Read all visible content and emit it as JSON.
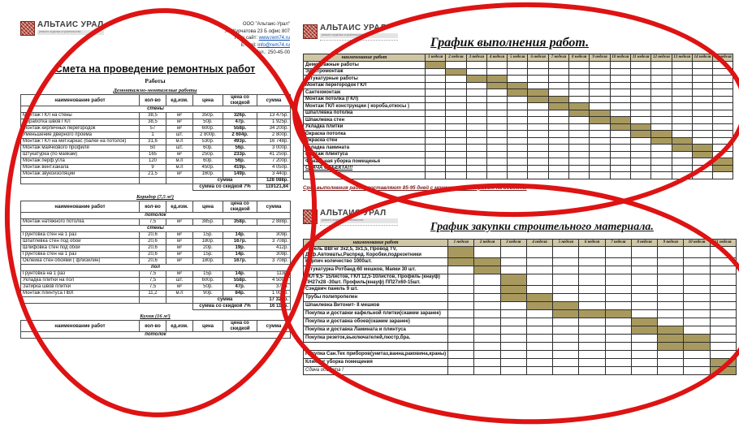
{
  "brand": {
    "name": "АЛЬТАИС УРАЛ",
    "tagline": "ремонт отделка строительство"
  },
  "estimate": {
    "contact": {
      "company": "ООО \"Альтаис-Урал\"",
      "address": "Ул. Курчатова 23 Б офис 807",
      "site_prefix": "Наш сайт: ",
      "site": "www.rem74.ru",
      "email_prefix": "E-mail: ",
      "email": "info@rem74.ru",
      "phone": "Тел.: 250-45-00"
    },
    "title": "Смета на проведение ремонтных работ",
    "subtitle": "Работы",
    "columns": [
      "наименование работ",
      "кол-во",
      "ед.изм.",
      "цена",
      "цена со скидкой",
      "сумма"
    ],
    "sections": [
      {
        "heading": "Демонтажно-монтажные работы",
        "groups": [
          {
            "label": "стены",
            "rows": [
              [
                "Монтаж ГКЛ на стены",
                "38,5",
                "м²",
                "350р.",
                "326р.",
                "13 475р."
              ],
              [
                "Обработка швов ГКЛ",
                "38,5",
                "м²",
                "50р.",
                "47р.",
                "1 925р."
              ],
              [
                "Монтаж кирпичных перегородок",
                "57",
                "м²",
                "600р.",
                "558р.",
                "34 200р."
              ],
              [
                "Уменьшение дверного проема",
                "1",
                "шт.",
                "2 800р.",
                "2 604р.",
                "2 800р."
              ],
              [
                "Монтаж ГКЛ на мет.каркас (балки на потолок)",
                "31,6",
                "м.п",
                "530р.",
                "493р.",
                "16 748р."
              ],
              [
                "Монтаж маячкового профиля",
                "50",
                "шт.",
                "60р.",
                "56р.",
                "3 000р."
              ],
              [
                "Штукатурка (по маякам)",
                "165",
                "м²",
                "250р.",
                "233р.",
                "41 250р."
              ],
              [
                "Монтаж перф.угла",
                "120",
                "м.п",
                "60р.",
                "56р.",
                "7 200р."
              ],
              [
                "Монтаж вент.канала",
                "9",
                "м.п",
                "450р.",
                "419р.",
                "4 050р."
              ],
              [
                "Монтаж звукоизоляции",
                "21,5",
                "м²",
                "160р.",
                "149р.",
                "3 440р."
              ]
            ]
          }
        ],
        "totals": [
          {
            "label": "сумма",
            "value": "128 088р.",
            "full_row": true
          },
          {
            "label": "сумма со скидкой 7%",
            "value": "119121,84",
            "full_row": false
          }
        ]
      },
      {
        "heading": "Коридор (7,5 м²)",
        "groups": [
          {
            "label": "потолок",
            "rows": [
              [
                "Монтаж натяжного потолка",
                "7,5",
                "м²",
                "385р.",
                "358р.",
                "2 888р."
              ]
            ]
          },
          {
            "label": "стены",
            "rows": [
              [
                "Грунтовка стен на 1 раз",
                "20,6",
                "м²",
                "15р.",
                "14р.",
                "309р."
              ],
              [
                "Шпатлевка стен под обои",
                "20,6",
                "м²",
                "180р.",
                "167р.",
                "3 708р."
              ],
              [
                "Шлифовка стен под обои",
                "20,6",
                "м²",
                "20р.",
                "19р.",
                "412р."
              ],
              [
                "Грунтовка стен на 1 раз",
                "20,6",
                "м²",
                "15р.",
                "14р.",
                "309р."
              ],
              [
                "Оклейка стен обоями ( флизилин)",
                "20,6",
                "м²",
                "180р.",
                "167р.",
                "3 708р."
              ]
            ]
          },
          {
            "label": "пол",
            "rows": [
              [
                "Грунтовка  на 1 раз",
                "7,5",
                "м²",
                "15р.",
                "14р.",
                "113р."
              ],
              [
                "Укладка плитки на пол",
                "7,5",
                "шт.",
                "600р.",
                "558р.",
                "4 500р."
              ],
              [
                "Затирка швов плитки",
                "7,5",
                "м²",
                "50р.",
                "47р.",
                "375р."
              ],
              [
                "Монтаж плинтуса ПВХ",
                "11,2",
                "м.п",
                "90р.",
                "84р.",
                "1 008р."
              ]
            ]
          }
        ],
        "totals": [
          {
            "label": "сумма",
            "value": "17 329р.",
            "full_row": true
          },
          {
            "label": "сумма со скидкой 7%",
            "value": "16 116р.",
            "full_row": false
          }
        ]
      },
      {
        "heading": "Кухня (16 м²)",
        "groups": [
          {
            "label": "потолок",
            "rows": []
          }
        ],
        "totals": []
      }
    ]
  },
  "work_schedule": {
    "title": "График выполнения работ.",
    "name_column": "наименование работ",
    "weeks": [
      "1 неделя",
      "2 неделя",
      "3 неделя",
      "4 неделя",
      "5 неделя",
      "6 неделя",
      "7 неделя",
      "8 неделя",
      "9 неделя",
      "10 неделя",
      "11 неделя",
      "12 неделя",
      "13 неделя",
      "14 неделя",
      "15 неделя"
    ],
    "rows": [
      {
        "label": "Демонтажные работы",
        "weeks": [
          1
        ]
      },
      {
        "label": "Электромонтаж",
        "weeks": [
          2
        ]
      },
      {
        "label": "Штукатурные работы",
        "weeks": [
          3,
          4
        ]
      },
      {
        "label": "Монтаж  перегородок ГКЛ",
        "weeks": [
          4,
          5
        ]
      },
      {
        "label": "Сантехмонтаж",
        "weeks": [
          5,
          6
        ]
      },
      {
        "label": "Монтаж потолка (ГКЛ)",
        "weeks": [
          6,
          7
        ]
      },
      {
        "label": "Монтаж ГКЛ конструкции ( короба,откосы )",
        "weeks": [
          7,
          8
        ]
      },
      {
        "label": "Шпатлёвка  потолка",
        "weeks": [
          8,
          9
        ]
      },
      {
        "label": "Шпаклевка стен",
        "weeks": [
          9,
          10
        ]
      },
      {
        "label": "Укладка плитки",
        "weeks": [
          10,
          11
        ]
      },
      {
        "label": "Окраска потолка",
        "weeks": [
          11,
          12
        ]
      },
      {
        "label": "Окраска стен",
        "weeks": [
          12,
          13
        ]
      },
      {
        "label": "Укладка ламината",
        "weeks": [
          13,
          14
        ]
      },
      {
        "label": "Монтаж плинтуса",
        "weeks": [
          14
        ]
      },
      {
        "label": "Финальная уборка помещенья",
        "weeks": [
          15
        ]
      },
      {
        "label": "СДАЧА ОБЪЕКТА!!!",
        "weeks": [
          15
        ],
        "emphasis": true
      },
      {
        "label": "",
        "weeks": []
      }
    ],
    "footnote": "Срок выполнения работ составляют 85-95 дней с момента начала работ на объекте."
  },
  "purchase_schedule": {
    "title": "График закупки строительного материала.",
    "name_column": "наименование работ",
    "weeks": [
      "1 неделя",
      "2 неделя",
      "3 неделя",
      "4 неделя",
      "5 неделя",
      "6 неделя",
      "7 неделя",
      "8 неделя",
      "9 неделя",
      "10 неделя",
      "11 неделя"
    ],
    "rows": [
      {
        "label": "Кабель ВВГнг 3х2,5, 3х1,5, Провод TV,",
        "label2": "Диф.Автоматы,Распред. Коробки,подрезетники",
        "weeks": [
          1
        ]
      },
      {
        "label": "Кирпич количество 1000шт.",
        "weeks": [
          1,
          2
        ]
      },
      {
        "label": "Штукатурка Ротбанд-60 мешков, Маяки 30 шт.",
        "weeks": [
          2
        ]
      },
      {
        "label": "ГКЛ 9,5- 15листов, ГКЛ 12,5-10листов, Профиль (кнауф)",
        "label2": "ПН27х28 -30шт. Профиль(кнауф) ПП27х60-15шт.",
        "weeks": [
          3
        ]
      },
      {
        "label": "Сэндвич панель 9 шт.",
        "weeks": [
          3
        ]
      },
      {
        "label": "Трубы полипропелен",
        "weeks": [
          3,
          4
        ]
      },
      {
        "label": "Шпаклевка Витонит- 8 мешков",
        "weeks": [
          4,
          5
        ]
      },
      {
        "label": "Покупка и доставки кафельной плитки(скажем заранее)",
        "weeks": [
          5,
          6,
          7
        ]
      },
      {
        "label": "Покупка и доставка обоев(скажем заранее)",
        "weeks": [
          8
        ]
      },
      {
        "label": "Покупка и доставка Ламината и плинтуса",
        "weeks": [
          8,
          9
        ]
      },
      {
        "label": "Покупка резеток,выключателей,люстр,бра.",
        "weeks": [
          9,
          10
        ]
      },
      {
        "label": "",
        "weeks": [
          9,
          10
        ]
      },
      {
        "label": "Покупка Сан.Тех приборов(унитаз,ванна,раковина,краны)",
        "weeks": []
      },
      {
        "label": "Клининг уборка помещения",
        "weeks": [
          11
        ]
      },
      {
        "label": "Сдача объекта !",
        "weeks": [
          11
        ],
        "italic": true
      }
    ]
  },
  "colors": {
    "gantt_fill": "#a89a5e",
    "gantt_header_bg": "#cfc6a6",
    "annotation_red": "#de1313",
    "logo_red": "#a23327",
    "link_blue": "#0b4fb3"
  }
}
